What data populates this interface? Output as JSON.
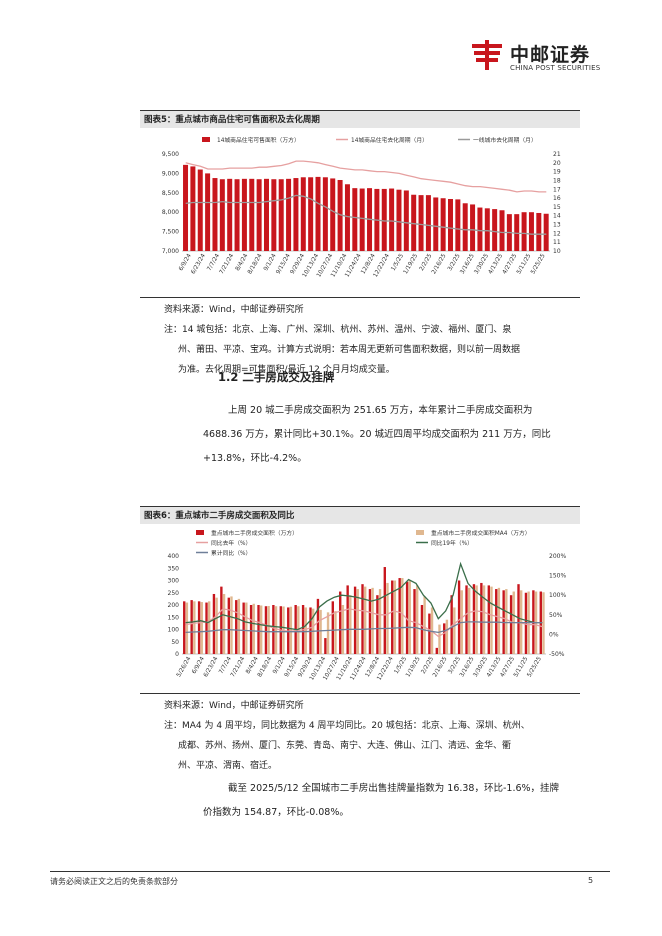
{
  "header": {
    "logo_cn": "中邮证券",
    "logo_en": "CHINA POST SECURITIES"
  },
  "fig5": {
    "title": "图表5：重点城市商品住宅可售面积及去化周期",
    "source": "资料来源：Wind，中邮证券研究所",
    "note_lines": [
      "注：14 城包括：北京、上海、广州、深圳、杭州、苏州、温州、宁波、福州、厦门、泉",
      "州、莆田、平凉、宝鸡。计算方式说明：若本周无更新可售面积数据，则以前一周数据",
      "为准。去化周期=可售面积/最近 12 个月月均成交量。"
    ]
  },
  "section": {
    "heading": "1.2 二手房成交及挂牌",
    "para1_lines": [
      "上周 20 城二手房成交面积为 251.65 万方，本年累计二手房成交面积为",
      "4688.36 万方，累计同比+30.1%。20 城近四周平均成交面积为 211 万方，同比",
      "+13.8%，环比-4.2%。"
    ]
  },
  "fig6": {
    "title": "图表6：重点城市二手房成交面积及同比",
    "source": "资料来源：Wind，中邮证券研究所",
    "note_lines": [
      "注：MA4 为 4 周平均，同比数据为 4 周平均同比。20 城包括：北京、上海、深圳、杭州、",
      "成都、苏州、扬州、厦门、东莞、青岛、南宁、大连、佛山、江门、清远、金华、衢",
      "州、平凉、渭南、宿迁。"
    ],
    "para2_lines": [
      "截至 2025/5/12 全国城市二手房出售挂牌量指数为 16.38，环比-1.6%，挂牌",
      "价指数为 154.87，环比-0.08%。"
    ]
  },
  "footer": {
    "disclaimer": "请务必阅读正文之后的免责条款部分",
    "page": "5"
  },
  "colors": {
    "bar_red": "#c8161d",
    "bar_tan": "#e0b890",
    "line_pink": "#e6a0a0",
    "line_blue": "#6f7f99",
    "line_gray": "#9a9a9a",
    "line_green": "#3a6e4a"
  },
  "chart_data": [
    {
      "type": "bar",
      "legend": [
        "14城商品住宅可售面积（万方）",
        "14城商品住宅去化周期（月）",
        "一线城市去化周期（月）"
      ],
      "legend_placement": "top",
      "x_tick_labels": [
        "6/9/24",
        "6/23/24",
        "7/7/24",
        "7/21/24",
        "8/4/24",
        "8/18/24",
        "9/1/24",
        "9/15/24",
        "9/29/24",
        "10/13/24",
        "10/27/24",
        "11/10/24",
        "11/24/24",
        "12/8/24",
        "12/22/24",
        "1/5/25",
        "1/19/25",
        "2/2/25",
        "2/16/25",
        "3/2/25",
        "3/16/25",
        "3/30/25",
        "4/13/25",
        "4/27/25",
        "5/11/25",
        "5/25/25"
      ],
      "y_left": {
        "ticks": [
          "7,000",
          "7,500",
          "8,000",
          "8,500",
          "9,000",
          "9,500"
        ],
        "range": [
          7000,
          9500
        ]
      },
      "y_right": {
        "ticks": [
          "10",
          "11",
          "12",
          "13",
          "14",
          "15",
          "16",
          "17",
          "18",
          "19",
          "20",
          "21"
        ],
        "range": [
          10,
          21
        ]
      },
      "series": [
        {
          "name": "14城商品住宅可售面积（万方）",
          "kind": "bar",
          "axis": "left",
          "values": [
            9220,
            9180,
            9100,
            9000,
            8880,
            8850,
            8860,
            8850,
            8860,
            8860,
            8850,
            8860,
            8850,
            8850,
            8860,
            8880,
            8900,
            8900,
            8910,
            8900,
            8870,
            8830,
            8720,
            8620,
            8610,
            8620,
            8600,
            8600,
            8610,
            8580,
            8560,
            8450,
            8440,
            8440,
            8380,
            8360,
            8340,
            8330,
            8230,
            8200,
            8120,
            8100,
            8080,
            8050,
            7950,
            7950,
            8000,
            8000,
            7980,
            7960
          ]
        },
        {
          "name": "14城商品住宅去化周期（月）",
          "kind": "line",
          "axis": "right",
          "values": [
            20.0,
            19.8,
            19.6,
            19.3,
            19.3,
            19.3,
            19.4,
            19.4,
            19.4,
            19.4,
            19.5,
            19.5,
            19.6,
            19.7,
            19.9,
            20.2,
            20.2,
            20.1,
            20.0,
            19.8,
            19.6,
            19.4,
            19.3,
            19.2,
            19.2,
            19.1,
            19.0,
            19.0,
            18.9,
            18.8,
            18.6,
            18.4,
            18.2,
            18.1,
            18.0,
            17.9,
            17.8,
            17.6,
            17.4,
            17.3,
            17.3,
            17.2,
            17.1,
            17.0,
            16.9,
            16.7,
            16.8,
            16.8,
            16.7,
            16.7
          ]
        },
        {
          "name": "一线城市去化周期（月）",
          "kind": "line",
          "axis": "right",
          "values": [
            15.4,
            15.5,
            15.5,
            15.5,
            15.5,
            15.6,
            15.5,
            15.5,
            15.5,
            15.5,
            15.5,
            15.6,
            15.7,
            15.8,
            16.0,
            16.3,
            16.2,
            15.9,
            15.4,
            15.0,
            14.5,
            14.1,
            13.9,
            13.8,
            13.7,
            13.6,
            13.5,
            13.4,
            13.4,
            13.3,
            13.2,
            13.1,
            13.0,
            12.9,
            12.8,
            12.7,
            12.6,
            12.5,
            12.4,
            12.4,
            12.3,
            12.3,
            12.2,
            12.1,
            12.1,
            12.0,
            12.0,
            11.9,
            11.9,
            11.9
          ]
        }
      ]
    },
    {
      "type": "bar",
      "legend": [
        "重点城市二手房成交面积（万方）",
        "重点城市二手房成交面积MA4（万方）",
        "同比去年（%）",
        "同比19年（%）",
        "累计同比（%）"
      ],
      "legend_placement": "top",
      "x_tick_labels": [
        "5/26/24",
        "6/9/24",
        "6/23/24",
        "7/7/24",
        "7/21/24",
        "8/4/24",
        "8/18/24",
        "9/1/24",
        "9/15/24",
        "9/29/24",
        "10/13/24",
        "10/27/24",
        "11/10/24",
        "11/24/24",
        "12/8/24",
        "12/22/24",
        "1/5/25",
        "1/19/25",
        "2/2/25",
        "2/16/25",
        "3/2/25",
        "3/16/25",
        "3/30/25",
        "4/13/25",
        "4/27/25",
        "5/11/25",
        "5/25/25"
      ],
      "y_left": {
        "ticks": [
          "0",
          "50",
          "100",
          "150",
          "200",
          "250",
          "300",
          "350",
          "400"
        ],
        "range": [
          0,
          400
        ]
      },
      "y_right": {
        "ticks": [
          "-50%",
          "0%",
          "50%",
          "100%",
          "150%",
          "200%"
        ],
        "range": [
          -50,
          200
        ]
      },
      "series": [
        {
          "name": "重点城市二手房成交面积（万方）",
          "kind": "bar",
          "axis": "left",
          "values": [
            215,
            220,
            215,
            210,
            245,
            275,
            230,
            220,
            210,
            200,
            200,
            195,
            200,
            195,
            190,
            200,
            200,
            190,
            225,
            65,
            215,
            255,
            280,
            275,
            285,
            265,
            240,
            355,
            300,
            310,
            295,
            265,
            200,
            165,
            25,
            125,
            240,
            300,
            280,
            285,
            290,
            280,
            265,
            260,
            240,
            285,
            250,
            260,
            255
          ]
        },
        {
          "name": "重点城市二手房成交面积MA4（万方）",
          "kind": "bar",
          "axis": "left",
          "values": [
            210,
            215,
            212,
            215,
            230,
            245,
            235,
            225,
            210,
            205,
            198,
            196,
            195,
            194,
            193,
            195,
            190,
            185,
            180,
            170,
            175,
            200,
            240,
            265,
            275,
            270,
            265,
            290,
            300,
            310,
            300,
            280,
            235,
            190,
            120,
            140,
            190,
            260,
            270,
            280,
            280,
            275,
            270,
            265,
            255,
            260,
            255,
            255,
            252
          ]
        },
        {
          "name": "同比去年（%）",
          "kind": "line",
          "axis": "right",
          "values": [
            25,
            28,
            30,
            32,
            45,
            65,
            62,
            55,
            45,
            35,
            30,
            22,
            15,
            10,
            8,
            10,
            12,
            18,
            35,
            45,
            55,
            60,
            65,
            62,
            60,
            55,
            50,
            50,
            60,
            55,
            35,
            30,
            20,
            10,
            -5,
            5,
            25,
            40,
            55,
            60,
            58,
            50,
            45,
            40,
            30,
            30,
            25,
            25,
            20
          ]
        },
        {
          "name": "同比19年（%）",
          "kind": "line",
          "axis": "right",
          "values": [
            30,
            32,
            35,
            30,
            40,
            50,
            45,
            40,
            32,
            28,
            25,
            22,
            20,
            18,
            15,
            12,
            20,
            40,
            70,
            85,
            95,
            100,
            98,
            95,
            90,
            85,
            90,
            100,
            110,
            120,
            140,
            130,
            100,
            80,
            40,
            60,
            100,
            180,
            130,
            110,
            95,
            80,
            70,
            60,
            50,
            40,
            35,
            30,
            30
          ]
        },
        {
          "name": "累计同比（%）",
          "kind": "line",
          "axis": "right",
          "values": [
            5,
            6,
            7,
            8,
            10,
            12,
            12,
            11,
            10,
            9,
            8,
            7,
            7,
            7,
            7,
            7,
            7,
            8,
            9,
            10,
            11,
            12,
            13,
            13,
            13,
            14,
            15,
            15,
            16,
            17,
            18,
            17,
            12,
            8,
            5,
            10,
            20,
            30,
            32,
            32,
            31,
            31,
            31,
            30,
            30,
            30,
            30,
            30,
            30
          ]
        }
      ]
    }
  ]
}
